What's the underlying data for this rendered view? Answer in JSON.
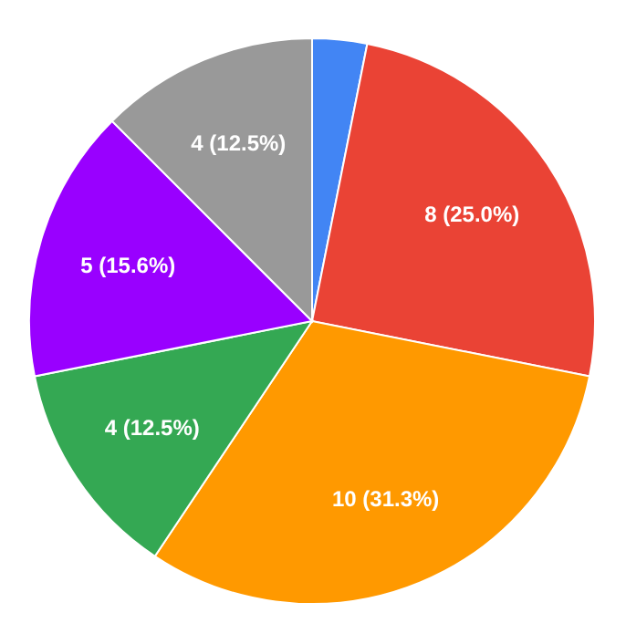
{
  "chart_data": {
    "type": "pie",
    "categories": [
      null,
      null,
      null,
      null,
      null,
      null
    ],
    "values": [
      1,
      8,
      10,
      4,
      5,
      4
    ],
    "colors": [
      "#4285f4",
      "#ea4335",
      "#ff9900",
      "#34a853",
      "#9900ff",
      "#999999"
    ],
    "value_labels": [
      null,
      "8 (25.0%)",
      "10 (31.3%)",
      "4 (12.5%)",
      "5 (15.6%)",
      "4 (12.5%)"
    ]
  }
}
